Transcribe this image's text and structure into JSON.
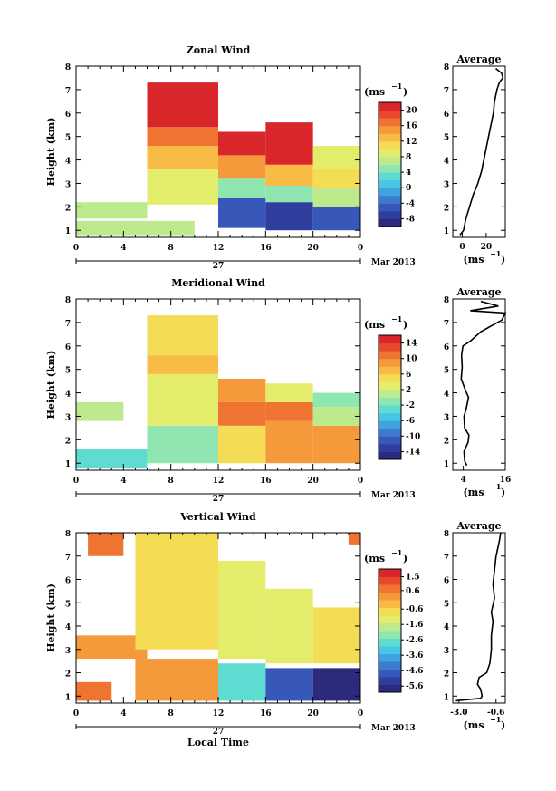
{
  "figure": {
    "month_label": "Mar 2013",
    "day_label": "27",
    "units_label": "(ms",
    "units_exp": "−1",
    "avg_units_label": "(ms",
    "xlabel_bottom": "Local Time"
  },
  "chart_data": [
    {
      "type": "heatmap",
      "title": "Zonal Wind",
      "ylabel": "Height (km)",
      "x_ticks": [
        "0",
        "4",
        "8",
        "12",
        "16",
        "20",
        "0"
      ],
      "xlim": [
        0,
        24
      ],
      "y_ticks": [
        "1",
        "2",
        "3",
        "4",
        "5",
        "6",
        "7",
        "8"
      ],
      "ylim": [
        0.7,
        8
      ],
      "colorbar": {
        "ticks": [
          "20",
          "16",
          "12",
          "8",
          "4",
          "0",
          "-4",
          "-8"
        ],
        "range": [
          -10,
          22
        ]
      },
      "average_profile": {
        "title": "Average",
        "x_ticks": [
          "0",
          "20"
        ],
        "xlim": [
          -8,
          36
        ],
        "points": [
          [
            -2,
            0.8
          ],
          [
            1,
            1.0
          ],
          [
            3,
            1.5
          ],
          [
            6,
            2.0
          ],
          [
            9,
            2.5
          ],
          [
            13,
            3.0
          ],
          [
            16,
            3.5
          ],
          [
            18,
            4.0
          ],
          [
            20,
            4.5
          ],
          [
            22,
            5.0
          ],
          [
            24,
            5.5
          ],
          [
            26,
            6.0
          ],
          [
            27,
            6.5
          ],
          [
            29,
            7.0
          ],
          [
            31,
            7.3
          ],
          [
            34,
            7.5
          ],
          [
            33,
            7.7
          ],
          [
            28,
            7.9
          ]
        ]
      },
      "field": {
        "cells": [
          {
            "t": [
              0,
              6
            ],
            "h": [
              1.5,
              2.2
            ],
            "v": 6
          },
          {
            "t": [
              0,
              10
            ],
            "h": [
              0.8,
              1.4
            ],
            "v": 7
          },
          {
            "t": [
              6,
              12
            ],
            "h": [
              2.1,
              3.6
            ],
            "v": 8
          },
          {
            "t": [
              6,
              12
            ],
            "h": [
              3.6,
              4.6
            ],
            "v": 13
          },
          {
            "t": [
              6,
              12
            ],
            "h": [
              4.6,
              5.4
            ],
            "v": 16
          },
          {
            "t": [
              6,
              12
            ],
            "h": [
              5.4,
              7.3
            ],
            "v": 20
          },
          {
            "t": [
              12,
              16
            ],
            "h": [
              1.1,
              2.4
            ],
            "v": -6
          },
          {
            "t": [
              12,
              16
            ],
            "h": [
              2.4,
              3.2
            ],
            "v": 5
          },
          {
            "t": [
              12,
              16
            ],
            "h": [
              3.2,
              4.2
            ],
            "v": 14
          },
          {
            "t": [
              12,
              16
            ],
            "h": [
              4.2,
              5.2
            ],
            "v": 20
          },
          {
            "t": [
              16,
              20
            ],
            "h": [
              1.0,
              2.2
            ],
            "v": -8
          },
          {
            "t": [
              16,
              20
            ],
            "h": [
              2.2,
              2.9
            ],
            "v": 4
          },
          {
            "t": [
              16,
              20
            ],
            "h": [
              2.9,
              3.8
            ],
            "v": 12
          },
          {
            "t": [
              16,
              20
            ],
            "h": [
              3.8,
              5.6
            ],
            "v": 20
          },
          {
            "t": [
              20,
              24
            ],
            "h": [
              1.0,
              2.0
            ],
            "v": -5
          },
          {
            "t": [
              20,
              24
            ],
            "h": [
              2.0,
              2.8
            ],
            "v": 6
          },
          {
            "t": [
              20,
              24
            ],
            "h": [
              2.8,
              3.6
            ],
            "v": 11
          },
          {
            "t": [
              20,
              24
            ],
            "h": [
              3.6,
              4.6
            ],
            "v": 8
          }
        ]
      }
    },
    {
      "type": "heatmap",
      "title": "Meridional Wind",
      "ylabel": "Height (km)",
      "x_ticks": [
        "0",
        "4",
        "8",
        "12",
        "16",
        "20",
        "0"
      ],
      "xlim": [
        0,
        24
      ],
      "y_ticks": [
        "1",
        "2",
        "3",
        "4",
        "5",
        "6",
        "7",
        "8"
      ],
      "ylim": [
        0.7,
        8
      ],
      "colorbar": {
        "ticks": [
          "14",
          "10",
          "6",
          "2",
          "-2",
          "-6",
          "-10",
          "-14"
        ],
        "range": [
          -16,
          16
        ]
      },
      "average_profile": {
        "title": "Average",
        "x_ticks": [
          "4",
          "16"
        ],
        "xlim": [
          1,
          16
        ],
        "points": [
          [
            5,
            0.9
          ],
          [
            4.4,
            1.1
          ],
          [
            4.2,
            1.5
          ],
          [
            5.4,
            1.9
          ],
          [
            5.6,
            2.2
          ],
          [
            4.4,
            2.5
          ],
          [
            4.2,
            3.0
          ],
          [
            4.8,
            3.3
          ],
          [
            5.5,
            3.8
          ],
          [
            4.4,
            4.2
          ],
          [
            3.4,
            4.6
          ],
          [
            3.7,
            5.1
          ],
          [
            3.5,
            5.6
          ],
          [
            3.9,
            6.0
          ],
          [
            6,
            6.2
          ],
          [
            9,
            6.6
          ],
          [
            15,
            7.1
          ],
          [
            16,
            7.4
          ],
          [
            6,
            7.5
          ],
          [
            14,
            7.7
          ],
          [
            9,
            7.9
          ]
        ]
      },
      "field": {
        "cells": [
          {
            "t": [
              0,
              4
            ],
            "h": [
              2.8,
              3.6
            ],
            "v": 0
          },
          {
            "t": [
              0,
              6
            ],
            "h": [
              0.8,
              1.6
            ],
            "v": -3
          },
          {
            "t": [
              6,
              12
            ],
            "h": [
              1.0,
              2.6
            ],
            "v": -1
          },
          {
            "t": [
              6,
              12
            ],
            "h": [
              2.6,
              4.8
            ],
            "v": 2
          },
          {
            "t": [
              6,
              12
            ],
            "h": [
              4.8,
              5.6
            ],
            "v": 6
          },
          {
            "t": [
              6,
              12
            ],
            "h": [
              5.6,
              7.3
            ],
            "v": 4
          },
          {
            "t": [
              12,
              16
            ],
            "h": [
              1.0,
              2.6
            ],
            "v": 5
          },
          {
            "t": [
              12,
              16
            ],
            "h": [
              2.6,
              3.6
            ],
            "v": 11
          },
          {
            "t": [
              12,
              16
            ],
            "h": [
              3.6,
              4.6
            ],
            "v": 9
          },
          {
            "t": [
              16,
              20
            ],
            "h": [
              1.0,
              2.8
            ],
            "v": 8
          },
          {
            "t": [
              16,
              20
            ],
            "h": [
              2.8,
              3.6
            ],
            "v": 10
          },
          {
            "t": [
              16,
              20
            ],
            "h": [
              3.6,
              4.4
            ],
            "v": 2
          },
          {
            "t": [
              20,
              24
            ],
            "h": [
              1.0,
              2.6
            ],
            "v": 9
          },
          {
            "t": [
              20,
              24
            ],
            "h": [
              2.6,
              3.4
            ],
            "v": 0
          },
          {
            "t": [
              20,
              24
            ],
            "h": [
              3.4,
              4.0
            ],
            "v": -2
          }
        ]
      }
    },
    {
      "type": "heatmap",
      "title": "Vertical Wind",
      "ylabel": "Height (km)",
      "xlabel": "Local Time",
      "x_ticks": [
        "0",
        "4",
        "8",
        "12",
        "16",
        "20",
        "0"
      ],
      "xlim": [
        0,
        24
      ],
      "y_ticks": [
        "1",
        "2",
        "3",
        "4",
        "5",
        "6",
        "7",
        "8"
      ],
      "ylim": [
        0.7,
        8
      ],
      "colorbar": {
        "ticks": [
          "1.5",
          "0.6",
          "-0.6",
          "-1.6",
          "-2.6",
          "-3.6",
          "-4.6",
          "-5.6"
        ],
        "range": [
          -6,
          2
        ]
      },
      "average_profile": {
        "title": "Average",
        "x_ticks": [
          "-3.0",
          "-0.6"
        ],
        "xlim": [
          -3.4,
          0
        ],
        "points": [
          [
            -3.2,
            0.8
          ],
          [
            -1.6,
            0.9
          ],
          [
            -1.5,
            1.0
          ],
          [
            -1.6,
            1.3
          ],
          [
            -1.8,
            1.5
          ],
          [
            -1.7,
            1.8
          ],
          [
            -1.2,
            2.0
          ],
          [
            -1.0,
            2.4
          ],
          [
            -0.9,
            3.0
          ],
          [
            -0.9,
            3.6
          ],
          [
            -0.8,
            4.2
          ],
          [
            -0.9,
            4.6
          ],
          [
            -0.7,
            5.2
          ],
          [
            -0.8,
            5.8
          ],
          [
            -0.7,
            6.4
          ],
          [
            -0.6,
            7.0
          ],
          [
            -0.4,
            7.6
          ],
          [
            -0.3,
            8.0
          ]
        ]
      },
      "field": {
        "cells": [
          {
            "t": [
              0,
              3
            ],
            "h": [
              0.8,
              1.6
            ],
            "v": 0.5
          },
          {
            "t": [
              0,
              6
            ],
            "h": [
              2.6,
              3.6
            ],
            "v": 0.4
          },
          {
            "t": [
              1,
              4
            ],
            "h": [
              7.0,
              8.0
            ],
            "v": 0.6
          },
          {
            "t": [
              5,
              12
            ],
            "h": [
              3.0,
              8.0
            ],
            "v": -1.0
          },
          {
            "t": [
              5,
              12
            ],
            "h": [
              0.8,
              2.6
            ],
            "v": 0.2
          },
          {
            "t": [
              12,
              16
            ],
            "h": [
              2.6,
              6.8
            ],
            "v": -1.4
          },
          {
            "t": [
              12,
              16
            ],
            "h": [
              0.8,
              2.4
            ],
            "v": -2.6
          },
          {
            "t": [
              16,
              20
            ],
            "h": [
              2.4,
              5.6
            ],
            "v": -1.2
          },
          {
            "t": [
              16,
              20
            ],
            "h": [
              0.8,
              2.2
            ],
            "v": -4.6
          },
          {
            "t": [
              20,
              24
            ],
            "h": [
              2.4,
              4.8
            ],
            "v": -0.9
          },
          {
            "t": [
              20,
              24
            ],
            "h": [
              0.8,
              2.2
            ],
            "v": -5.6
          },
          {
            "t": [
              23,
              24
            ],
            "h": [
              7.5,
              8.0
            ],
            "v": 0.5
          }
        ]
      }
    }
  ]
}
